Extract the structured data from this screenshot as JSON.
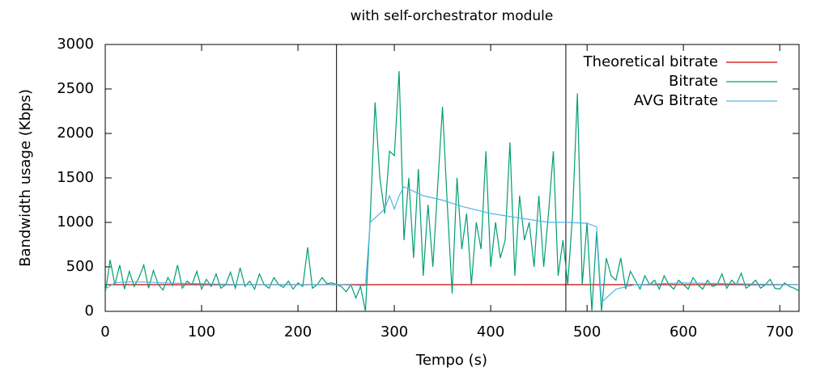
{
  "chart_data": {
    "type": "line",
    "title": "with self-orchestrator module",
    "x_label": "Tempo (s)",
    "y_label": "Bandwidth usage (Kbps)",
    "xlim": [
      0,
      720
    ],
    "xticks": [
      0,
      100,
      200,
      300,
      400,
      500,
      600,
      700
    ],
    "ylim": [
      0,
      3000
    ],
    "yticks": [
      0,
      500,
      1000,
      1500,
      2000,
      2500,
      3000
    ],
    "vlines": [
      240,
      478
    ],
    "legend": "top-right",
    "series": [
      {
        "name": "Theoretical bitrate",
        "color": "#cc0000",
        "x": [
          0,
          720
        ],
        "values": [
          300,
          300
        ]
      },
      {
        "name": "Bitrate",
        "color": "#009e73",
        "x": [
          0,
          5,
          10,
          15,
          20,
          25,
          30,
          35,
          40,
          45,
          50,
          55,
          60,
          65,
          70,
          75,
          80,
          85,
          90,
          95,
          100,
          105,
          110,
          115,
          120,
          125,
          130,
          135,
          140,
          145,
          150,
          155,
          160,
          165,
          170,
          175,
          180,
          185,
          190,
          195,
          200,
          205,
          210,
          215,
          220,
          225,
          230,
          235,
          240,
          245,
          250,
          255,
          260,
          265,
          270,
          275,
          280,
          285,
          290,
          295,
          300,
          305,
          310,
          315,
          320,
          325,
          330,
          335,
          340,
          345,
          350,
          355,
          360,
          365,
          370,
          375,
          380,
          385,
          390,
          395,
          400,
          405,
          410,
          415,
          420,
          425,
          430,
          435,
          440,
          445,
          450,
          455,
          460,
          465,
          470,
          475,
          480,
          485,
          490,
          495,
          500,
          505,
          510,
          515,
          520,
          525,
          530,
          535,
          540,
          545,
          550,
          555,
          560,
          565,
          570,
          575,
          580,
          585,
          590,
          595,
          600,
          605,
          610,
          615,
          620,
          625,
          630,
          635,
          640,
          645,
          650,
          655,
          660,
          665,
          670,
          675,
          680,
          685,
          690,
          695,
          700,
          705,
          710,
          715,
          720
        ],
        "values": [
          200,
          580,
          300,
          520,
          250,
          450,
          280,
          380,
          520,
          260,
          460,
          300,
          240,
          380,
          290,
          520,
          260,
          340,
          300,
          450,
          250,
          360,
          280,
          420,
          260,
          300,
          440,
          260,
          490,
          280,
          340,
          250,
          420,
          300,
          260,
          380,
          300,
          270,
          340,
          250,
          320,
          280,
          720,
          260,
          300,
          380,
          310,
          320,
          300,
          280,
          220,
          300,
          150,
          280,
          0,
          1050,
          2350,
          1500,
          1100,
          1800,
          1750,
          2700,
          800,
          1500,
          600,
          1600,
          400,
          1200,
          500,
          1400,
          2300,
          1200,
          200,
          1500,
          700,
          1100,
          300,
          1000,
          700,
          1800,
          500,
          1000,
          600,
          800,
          1900,
          400,
          1300,
          800,
          1000,
          500,
          1300,
          500,
          1100,
          1800,
          400,
          800,
          300,
          1100,
          2450,
          300,
          1000,
          0,
          900,
          0,
          600,
          400,
          350,
          600,
          250,
          450,
          350,
          250,
          400,
          300,
          350,
          250,
          400,
          300,
          250,
          350,
          300,
          250,
          380,
          300,
          250,
          350,
          280,
          300,
          420,
          260,
          350,
          300,
          430,
          260,
          300,
          350,
          260,
          300,
          360,
          260,
          250,
          320,
          280,
          260,
          230
        ]
      },
      {
        "name": "AVG Bitrate",
        "color": "#56b4e9",
        "x": [
          0,
          10,
          20,
          40,
          60,
          100,
          150,
          200,
          240,
          270,
          275,
          290,
          295,
          300,
          305,
          310,
          330,
          350,
          370,
          400,
          430,
          460,
          480,
          500,
          510,
          515,
          520,
          530,
          550,
          600,
          650,
          720
        ],
        "values": [
          250,
          320,
          330,
          330,
          320,
          310,
          300,
          300,
          300,
          290,
          1000,
          1150,
          1300,
          1150,
          1300,
          1400,
          1300,
          1250,
          1180,
          1100,
          1050,
          1000,
          1000,
          990,
          950,
          100,
          150,
          250,
          300,
          320,
          310,
          300
        ]
      }
    ]
  }
}
